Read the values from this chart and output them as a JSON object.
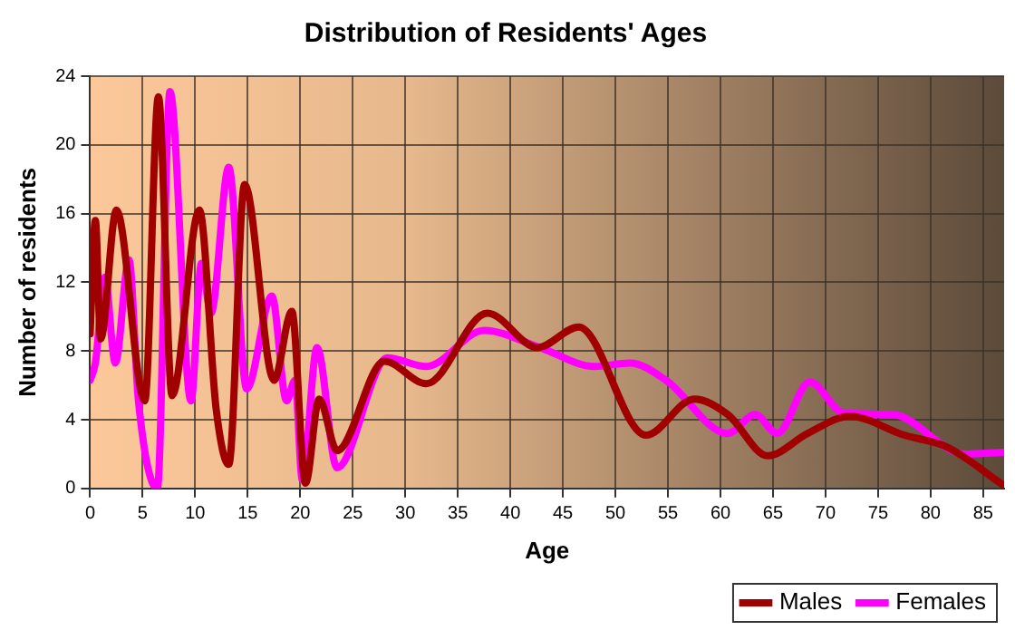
{
  "chart_data": {
    "type": "line",
    "title": "Distribution of Residents' Ages",
    "xlabel": "Age",
    "ylabel": "Number of residents",
    "xlim": [
      0,
      87
    ],
    "xticks": [
      0,
      5,
      10,
      15,
      20,
      25,
      30,
      35,
      40,
      45,
      50,
      55,
      60,
      65,
      70,
      75,
      80,
      85
    ],
    "ylim": [
      0,
      24
    ],
    "yticks": [
      0,
      4,
      8,
      12,
      16,
      20,
      24
    ],
    "grid": true,
    "legend": "bottom right",
    "marker": "none",
    "line_style": "solid",
    "series": [
      {
        "name": "Males",
        "color": "#a00000",
        "x": [
          0,
          0.5,
          1,
          2.5,
          5.2,
          6.5,
          7.8,
          10.4,
          12,
          13.2,
          14.7,
          17.5,
          19.2,
          20.5,
          21.8,
          23.5,
          28,
          32,
          37.8,
          42.6,
          46.5,
          52.9,
          57.5,
          60.7,
          64.5,
          68.3,
          72.3,
          77.5,
          81.6,
          86.9
        ],
        "values": [
          9.0,
          15.6,
          8.7,
          16.2,
          5.1,
          22.8,
          5.4,
          16.2,
          4.6,
          1.4,
          17.7,
          6.3,
          10.3,
          0.3,
          5.2,
          2.2,
          7.4,
          6.1,
          10.2,
          8.2,
          9.4,
          3.1,
          5.2,
          4.3,
          1.9,
          3.2,
          4.2,
          3.1,
          2.4,
          0.2
        ]
      },
      {
        "name": "Females",
        "color": "#ff00ff",
        "x": [
          0,
          0.5,
          1.4,
          2.4,
          3.7,
          4.6,
          6.4,
          7.6,
          9.6,
          10.6,
          11.5,
          13.2,
          14.9,
          17.3,
          18.7,
          19.5,
          20.2,
          21.6,
          23.5,
          28.3,
          32,
          37.5,
          42.8,
          48,
          51.4,
          54.8,
          60.7,
          63.3,
          65.4,
          68.5,
          71.7,
          76.4,
          83.3,
          86.9
        ],
        "values": [
          6.3,
          7.3,
          12.3,
          7.3,
          13.3,
          5.1,
          0,
          23.1,
          5.1,
          13.1,
          10.2,
          18.7,
          5.8,
          11.2,
          5.1,
          6.3,
          0.5,
          8.2,
          1.2,
          7.6,
          7.1,
          9.2,
          8.2,
          7.1,
          7.3,
          6.3,
          3.2,
          4.3,
          3.2,
          6.2,
          4.4,
          4.3,
          2.0,
          2.1
        ]
      }
    ]
  }
}
